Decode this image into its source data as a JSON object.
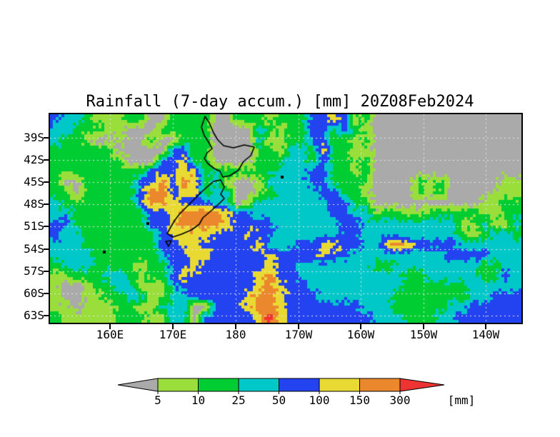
{
  "page": {
    "background": "#ffffff"
  },
  "chart_data": {
    "type": "heatmap",
    "title": "Rainfall (7-day accum.) [mm] 20Z08Feb2024",
    "x_axis": {
      "tick_labels": [
        "160E",
        "170E",
        "180",
        "170W",
        "160W",
        "150W",
        "140W"
      ],
      "tick_x": [
        154,
        242,
        330,
        418,
        505,
        593,
        680
      ]
    },
    "y_axis": {
      "tick_labels": [
        "39S",
        "42S",
        "45S",
        "48S",
        "51S",
        "54S",
        "57S",
        "60S",
        "63S"
      ],
      "tick_y": [
        193,
        224,
        255,
        286,
        317,
        349,
        380,
        411,
        442
      ]
    },
    "legend": {
      "thresholds": [
        "5",
        "10",
        "25",
        "50",
        "100",
        "150",
        "300"
      ],
      "unit_label": "[mm]",
      "palette": [
        "#aaaaaa",
        "#9ade3c",
        "#00cd32",
        "#00c8c8",
        "#2342f0",
        "#e8da32",
        "#eb882e",
        "#ee3333"
      ],
      "palette_meaning": [
        "below 5 mm",
        "5-10 mm",
        "10-25 mm",
        "25-50 mm",
        "50-100 mm",
        "100-150 mm",
        "150-300 mm",
        "above 300 mm"
      ]
    },
    "gridline_color": "#e8e8e8",
    "grid": {
      "legend_chars": "Glgcbyor",
      "rows": [
        "bccglllggGGggggGGggglgggbbyblgGGGGGGGGGGGGGG",
        "ccgggllGGGgggggGGGGcglggbbgbglGGGGGGGGGGGGGG",
        "cgglGGlGGgGGgggGGGGcllggbbgglgGGGGGGGGGGGGGG",
        "ggggggGGGGGbbggGGGGgglccgyggllGGGGGGGGGGGGGG",
        "gggggggGGGbbyggGGGGgggccgbgglgGGGGGGGGGGGGGG",
        "gggggggggbbbyygcgggggcccbbgglgGGGGGGGGGGGGGG",
        "gGGgggggbboboygclGGlccccbbggggGGGGglgGGGGGll",
        "ggGgggggboobyygccGGlgccccbbgglGGGGglgGGGGlll",
        "cgggggggbooybbbccGlcccccccbbggGGGGGGGGGGllgg",
        "ccgggggggbbyooooybbcccccccbbcclggllgggg!llgg",
        "bbgggggggbbyooooybbbbccccccbbcccccccccllcllc",
        "bccgggggggbyyyybbbybbccccccbbcccccccccglgcc!",
        "cccgggggggbbyybbbbbycccbbyybbccyoybbbbcccccc",
        "ccccggggggcbbyybbbbbybbbbybbcccccccccbbbbccc",
        "gcccgggglggbbybbbbbbybbcccccccggccccccccggcc",
        "llgggccglggbybbbbbbyobbccccccccccggcccccggbc",
        "lGGlggcclllcbbbbbbbyoybbcccccccccggggggccccc",
        "lGGllggccllccbbbbbyooybbbcccccccgggggggccbbb",
        "llGlllggllcccGGbbbyooybbbbbbbcccgggggccbbbbb",
        "glllllgggllccGbbbbbyrybbbbbbbbcccgggccbbbbbb"
      ]
    },
    "coastline": {
      "label": "New Zealand",
      "polygons": [
        [
          [
            217,
            3
          ],
          [
            223,
            12
          ],
          [
            229,
            26
          ],
          [
            235,
            36
          ],
          [
            243,
            44
          ],
          [
            257,
            47
          ],
          [
            272,
            43
          ],
          [
            286,
            46
          ],
          [
            281,
            58
          ],
          [
            271,
            66
          ],
          [
            264,
            78
          ],
          [
            252,
            86
          ],
          [
            242,
            88
          ],
          [
            238,
            80
          ],
          [
            230,
            76
          ],
          [
            221,
            69
          ],
          [
            216,
            62
          ],
          [
            220,
            54
          ],
          [
            227,
            48
          ],
          [
            222,
            39
          ],
          [
            216,
            30
          ],
          [
            212,
            18
          ]
        ],
        [
          [
            239,
            92
          ],
          [
            244,
            102
          ],
          [
            239,
            112
          ],
          [
            244,
            118
          ],
          [
            238,
            124
          ],
          [
            227,
            134
          ],
          [
            214,
            145
          ],
          [
            209,
            154
          ],
          [
            198,
            162
          ],
          [
            184,
            168
          ],
          [
            172,
            172
          ],
          [
            164,
            167
          ],
          [
            169,
            158
          ],
          [
            175,
            148
          ],
          [
            182,
            139
          ],
          [
            192,
            129
          ],
          [
            202,
            119
          ],
          [
            213,
            108
          ],
          [
            222,
            100
          ],
          [
            229,
            94
          ]
        ],
        [
          [
            162,
            178
          ],
          [
            170,
            177
          ],
          [
            166,
            185
          ]
        ]
      ],
      "islets": [
        [
          323,
          86
        ],
        [
          135,
          151
        ],
        [
          74,
          191
        ]
      ]
    }
  }
}
